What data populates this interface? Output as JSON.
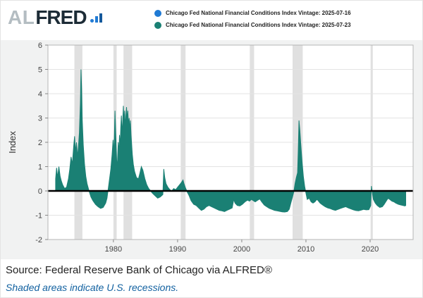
{
  "brand": {
    "al": "AL",
    "fred": "FRED"
  },
  "source": "Source: Federal Reserve Bank of Chicago via ALFRED®",
  "footnote": "Shaded areas indicate U.S. recessions.",
  "chart_data": {
    "type": "area",
    "title": "",
    "ylabel": "Index",
    "xlabel": "",
    "xlim": [
      1969.8,
      2026.7
    ],
    "ylim": [
      -2,
      6
    ],
    "yticks": [
      6,
      5,
      4,
      3,
      2,
      1,
      0,
      -1,
      -2
    ],
    "xticks": [
      1980,
      1990,
      2000,
      2010,
      2020
    ],
    "zero_line_value": 0,
    "grid": "horizontal",
    "legend_position": "top",
    "recession_color": "#e0e0e0",
    "recessions": [
      [
        1973.92,
        1975.17
      ],
      [
        1980.0,
        1980.5
      ],
      [
        1981.58,
        1982.92
      ],
      [
        1990.5,
        1991.25
      ],
      [
        2001.25,
        2001.92
      ],
      [
        2007.92,
        2009.5
      ],
      [
        2020.08,
        2020.42
      ]
    ],
    "series": [
      {
        "name": "Chicago Fed National Financial Conditions Index Vintage: 2025-07-16",
        "color": "#1f7ad4",
        "points": []
      },
      {
        "name": "Chicago Fed National Financial Conditions Index Vintage: 2025-07-23",
        "color": "#1a8074",
        "points": [
          [
            1971.0,
            0.5
          ],
          [
            1971.15,
            0.95
          ],
          [
            1971.3,
            0.55
          ],
          [
            1971.5,
            1.0
          ],
          [
            1971.7,
            0.6
          ],
          [
            1971.9,
            0.4
          ],
          [
            1972.1,
            0.25
          ],
          [
            1972.4,
            0.1
          ],
          [
            1972.7,
            0.15
          ],
          [
            1973.0,
            0.5
          ],
          [
            1973.2,
            0.9
          ],
          [
            1973.4,
            1.4
          ],
          [
            1973.6,
            1.1
          ],
          [
            1973.8,
            1.8
          ],
          [
            1973.95,
            2.25
          ],
          [
            1974.1,
            1.6
          ],
          [
            1974.25,
            2.0
          ],
          [
            1974.4,
            1.4
          ],
          [
            1974.55,
            1.8
          ],
          [
            1974.7,
            2.4
          ],
          [
            1974.85,
            3.6
          ],
          [
            1974.95,
            5.0
          ],
          [
            1975.05,
            4.2
          ],
          [
            1975.15,
            2.9
          ],
          [
            1975.3,
            1.9
          ],
          [
            1975.5,
            1.1
          ],
          [
            1975.7,
            0.6
          ],
          [
            1975.9,
            0.3
          ],
          [
            1976.2,
            0.0
          ],
          [
            1976.5,
            -0.25
          ],
          [
            1976.8,
            -0.4
          ],
          [
            1977.2,
            -0.55
          ],
          [
            1977.6,
            -0.65
          ],
          [
            1978.0,
            -0.72
          ],
          [
            1978.4,
            -0.68
          ],
          [
            1978.8,
            -0.5
          ],
          [
            1979.0,
            -0.3
          ],
          [
            1979.2,
            0.1
          ],
          [
            1979.4,
            0.5
          ],
          [
            1979.6,
            0.9
          ],
          [
            1979.8,
            1.5
          ],
          [
            1979.95,
            2.1
          ],
          [
            1980.05,
            1.5
          ],
          [
            1980.15,
            2.2
          ],
          [
            1980.25,
            3.3
          ],
          [
            1980.35,
            2.5
          ],
          [
            1980.45,
            1.7
          ],
          [
            1980.55,
            0.9
          ],
          [
            1980.65,
            1.3
          ],
          [
            1980.75,
            2.0
          ],
          [
            1980.85,
            1.5
          ],
          [
            1980.95,
            2.3
          ],
          [
            1981.05,
            1.8
          ],
          [
            1981.15,
            2.6
          ],
          [
            1981.25,
            3.1
          ],
          [
            1981.35,
            2.3
          ],
          [
            1981.45,
            2.9
          ],
          [
            1981.55,
            3.5
          ],
          [
            1981.65,
            2.8
          ],
          [
            1981.75,
            3.3
          ],
          [
            1981.85,
            2.6
          ],
          [
            1981.95,
            3.1
          ],
          [
            1982.05,
            3.45
          ],
          [
            1982.15,
            2.9
          ],
          [
            1982.25,
            3.3
          ],
          [
            1982.35,
            2.7
          ],
          [
            1982.45,
            3.0
          ],
          [
            1982.55,
            2.5
          ],
          [
            1982.65,
            2.9
          ],
          [
            1982.75,
            2.3
          ],
          [
            1982.85,
            1.9
          ],
          [
            1982.95,
            1.5
          ],
          [
            1983.1,
            1.1
          ],
          [
            1983.3,
            0.8
          ],
          [
            1983.6,
            0.55
          ],
          [
            1983.9,
            0.5
          ],
          [
            1984.1,
            0.7
          ],
          [
            1984.35,
            1.0
          ],
          [
            1984.6,
            0.85
          ],
          [
            1984.9,
            0.5
          ],
          [
            1985.2,
            0.25
          ],
          [
            1985.5,
            0.1
          ],
          [
            1985.8,
            0.0
          ],
          [
            1986.1,
            -0.1
          ],
          [
            1986.5,
            -0.2
          ],
          [
            1986.9,
            -0.3
          ],
          [
            1987.3,
            -0.25
          ],
          [
            1987.7,
            -0.15
          ],
          [
            1987.85,
            0.9
          ],
          [
            1988.0,
            0.55
          ],
          [
            1988.2,
            0.3
          ],
          [
            1988.5,
            0.15
          ],
          [
            1988.8,
            0.05
          ],
          [
            1989.1,
            0.0
          ],
          [
            1989.4,
            0.1
          ],
          [
            1989.7,
            0.05
          ],
          [
            1990.0,
            0.15
          ],
          [
            1990.3,
            0.25
          ],
          [
            1990.6,
            0.35
          ],
          [
            1990.85,
            0.45
          ],
          [
            1991.0,
            0.3
          ],
          [
            1991.2,
            0.15
          ],
          [
            1991.5,
            -0.05
          ],
          [
            1991.8,
            -0.2
          ],
          [
            1992.1,
            -0.4
          ],
          [
            1992.5,
            -0.55
          ],
          [
            1992.9,
            -0.6
          ],
          [
            1993.3,
            -0.7
          ],
          [
            1993.7,
            -0.8
          ],
          [
            1994.1,
            -0.75
          ],
          [
            1994.5,
            -0.65
          ],
          [
            1994.9,
            -0.6
          ],
          [
            1995.3,
            -0.65
          ],
          [
            1995.7,
            -0.7
          ],
          [
            1996.1,
            -0.75
          ],
          [
            1996.5,
            -0.8
          ],
          [
            1996.9,
            -0.82
          ],
          [
            1997.3,
            -0.85
          ],
          [
            1997.7,
            -0.8
          ],
          [
            1998.1,
            -0.75
          ],
          [
            1998.5,
            -0.7
          ],
          [
            1998.75,
            -0.35
          ],
          [
            1998.95,
            -0.5
          ],
          [
            1999.3,
            -0.6
          ],
          [
            1999.7,
            -0.62
          ],
          [
            2000.1,
            -0.55
          ],
          [
            2000.5,
            -0.45
          ],
          [
            2000.9,
            -0.38
          ],
          [
            2001.2,
            -0.42
          ],
          [
            2001.5,
            -0.35
          ],
          [
            2001.8,
            -0.4
          ],
          [
            2002.1,
            -0.45
          ],
          [
            2002.5,
            -0.38
          ],
          [
            2002.8,
            -0.33
          ],
          [
            2003.1,
            -0.45
          ],
          [
            2003.5,
            -0.58
          ],
          [
            2003.9,
            -0.65
          ],
          [
            2004.3,
            -0.72
          ],
          [
            2004.7,
            -0.76
          ],
          [
            2005.1,
            -0.8
          ],
          [
            2005.5,
            -0.82
          ],
          [
            2005.9,
            -0.84
          ],
          [
            2006.3,
            -0.86
          ],
          [
            2006.7,
            -0.87
          ],
          [
            2007.1,
            -0.85
          ],
          [
            2007.4,
            -0.75
          ],
          [
            2007.7,
            -0.45
          ],
          [
            2007.9,
            -0.25
          ],
          [
            2008.1,
            -0.05
          ],
          [
            2008.3,
            0.3
          ],
          [
            2008.5,
            0.55
          ],
          [
            2008.7,
            0.75
          ],
          [
            2008.8,
            1.6
          ],
          [
            2008.92,
            2.9
          ],
          [
            2009.05,
            2.5
          ],
          [
            2009.2,
            1.9
          ],
          [
            2009.4,
            1.2
          ],
          [
            2009.6,
            0.6
          ],
          [
            2009.8,
            0.2
          ],
          [
            2010.0,
            -0.1
          ],
          [
            2010.2,
            -0.35
          ],
          [
            2010.5,
            -0.3
          ],
          [
            2010.8,
            -0.45
          ],
          [
            2011.1,
            -0.5
          ],
          [
            2011.4,
            -0.45
          ],
          [
            2011.7,
            -0.35
          ],
          [
            2011.9,
            -0.4
          ],
          [
            2012.2,
            -0.5
          ],
          [
            2012.6,
            -0.58
          ],
          [
            2013.0,
            -0.65
          ],
          [
            2013.4,
            -0.7
          ],
          [
            2013.8,
            -0.73
          ],
          [
            2014.2,
            -0.77
          ],
          [
            2014.6,
            -0.8
          ],
          [
            2015.0,
            -0.76
          ],
          [
            2015.4,
            -0.72
          ],
          [
            2015.8,
            -0.68
          ],
          [
            2016.2,
            -0.65
          ],
          [
            2016.6,
            -0.7
          ],
          [
            2017.0,
            -0.74
          ],
          [
            2017.4,
            -0.78
          ],
          [
            2017.8,
            -0.81
          ],
          [
            2018.2,
            -0.82
          ],
          [
            2018.6,
            -0.79
          ],
          [
            2019.0,
            -0.76
          ],
          [
            2019.4,
            -0.78
          ],
          [
            2019.8,
            -0.77
          ],
          [
            2020.1,
            -0.6
          ],
          [
            2020.2,
            0.2
          ],
          [
            2020.35,
            -0.1
          ],
          [
            2020.5,
            -0.35
          ],
          [
            2020.8,
            -0.5
          ],
          [
            2021.1,
            -0.6
          ],
          [
            2021.5,
            -0.68
          ],
          [
            2021.9,
            -0.65
          ],
          [
            2022.2,
            -0.55
          ],
          [
            2022.5,
            -0.42
          ],
          [
            2022.8,
            -0.3
          ],
          [
            2023.1,
            -0.36
          ],
          [
            2023.4,
            -0.42
          ],
          [
            2023.7,
            -0.45
          ],
          [
            2024.0,
            -0.5
          ],
          [
            2024.4,
            -0.55
          ],
          [
            2024.8,
            -0.58
          ],
          [
            2025.1,
            -0.6
          ],
          [
            2025.4,
            -0.62
          ],
          [
            2025.55,
            -0.6
          ]
        ]
      }
    ]
  }
}
